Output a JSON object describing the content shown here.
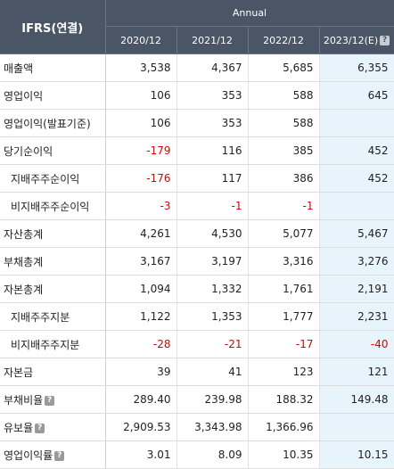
{
  "header": {
    "title": "IFRS(연결)",
    "group": "Annual",
    "years": [
      "2020/12",
      "2021/12",
      "2022/12",
      "2023/12(E)"
    ]
  },
  "rows": [
    {
      "label": "매출액",
      "values": [
        "3,538",
        "4,367",
        "5,685",
        "6,355"
      ],
      "help": false,
      "indent": false
    },
    {
      "label": "영업이익",
      "values": [
        "106",
        "353",
        "588",
        "645"
      ],
      "help": false,
      "indent": false
    },
    {
      "label": "영업이익(발표기준)",
      "values": [
        "106",
        "353",
        "588",
        ""
      ],
      "help": false,
      "indent": false
    },
    {
      "label": "당기순이익",
      "values": [
        "-179",
        "116",
        "385",
        "452"
      ],
      "help": false,
      "indent": false
    },
    {
      "label": "지배주주순이익",
      "values": [
        "-176",
        "117",
        "386",
        "452"
      ],
      "help": false,
      "indent": true
    },
    {
      "label": "비지배주주순이익",
      "values": [
        "-3",
        "-1",
        "-1",
        ""
      ],
      "help": false,
      "indent": true
    },
    {
      "label": "자산총계",
      "values": [
        "4,261",
        "4,530",
        "5,077",
        "5,467"
      ],
      "help": false,
      "indent": false
    },
    {
      "label": "부채총계",
      "values": [
        "3,167",
        "3,197",
        "3,316",
        "3,276"
      ],
      "help": false,
      "indent": false
    },
    {
      "label": "자본총계",
      "values": [
        "1,094",
        "1,332",
        "1,761",
        "2,191"
      ],
      "help": false,
      "indent": false
    },
    {
      "label": "지배주주지분",
      "values": [
        "1,122",
        "1,353",
        "1,777",
        "2,231"
      ],
      "help": false,
      "indent": true
    },
    {
      "label": "비지배주주지분",
      "values": [
        "-28",
        "-21",
        "-17",
        "-40"
      ],
      "help": false,
      "indent": true
    },
    {
      "label": "자본금",
      "values": [
        "39",
        "41",
        "123",
        "121"
      ],
      "help": false,
      "indent": false
    },
    {
      "label": "부채비율",
      "values": [
        "289.40",
        "239.98",
        "188.32",
        "149.48"
      ],
      "help": true,
      "indent": false
    },
    {
      "label": "유보율",
      "values": [
        "2,909.53",
        "3,343.98",
        "1,366.96",
        ""
      ],
      "help": true,
      "indent": false
    },
    {
      "label": "영업이익률",
      "values": [
        "3.01",
        "8.09",
        "10.35",
        "10.15"
      ],
      "help": true,
      "indent": false
    }
  ],
  "icons": {
    "help": "question-mark-icon"
  },
  "colors": {
    "header_bg": "#4a5566",
    "estimate_bg": "#e8f4fb",
    "negative": "#e00000"
  }
}
